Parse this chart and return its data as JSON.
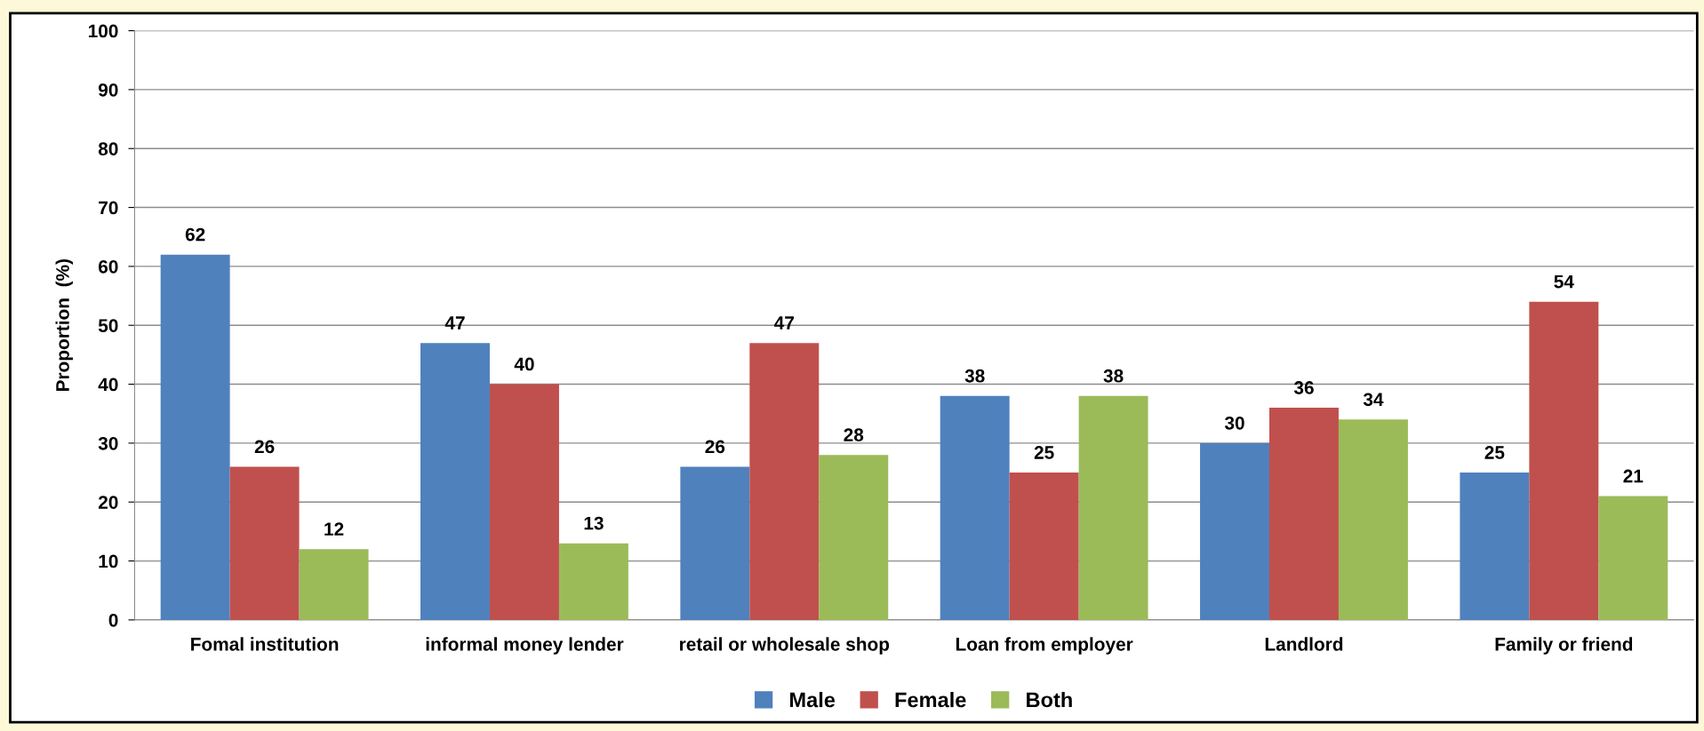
{
  "chart_data": {
    "type": "bar",
    "ylabel": "Proportion  (%)",
    "categories": [
      "Fomal institution",
      "informal money lender",
      "retail or wholesale shop",
      "Loan from employer",
      "Landlord",
      "Family or friend"
    ],
    "series": [
      {
        "name": "Male",
        "color": "#4f81bd",
        "values": [
          62,
          47,
          26,
          38,
          30,
          25
        ]
      },
      {
        "name": "Female",
        "color": "#c0504d",
        "values": [
          26,
          40,
          47,
          25,
          36,
          54
        ]
      },
      {
        "name": "Both",
        "color": "#9bbb59",
        "values": [
          12,
          13,
          28,
          38,
          34,
          21
        ]
      }
    ],
    "ylim": [
      0,
      100
    ],
    "yticks": [
      0,
      10,
      20,
      30,
      40,
      50,
      60,
      70,
      80,
      90,
      100
    ],
    "grid": "y",
    "legend": "bottom",
    "data_labels": true
  }
}
